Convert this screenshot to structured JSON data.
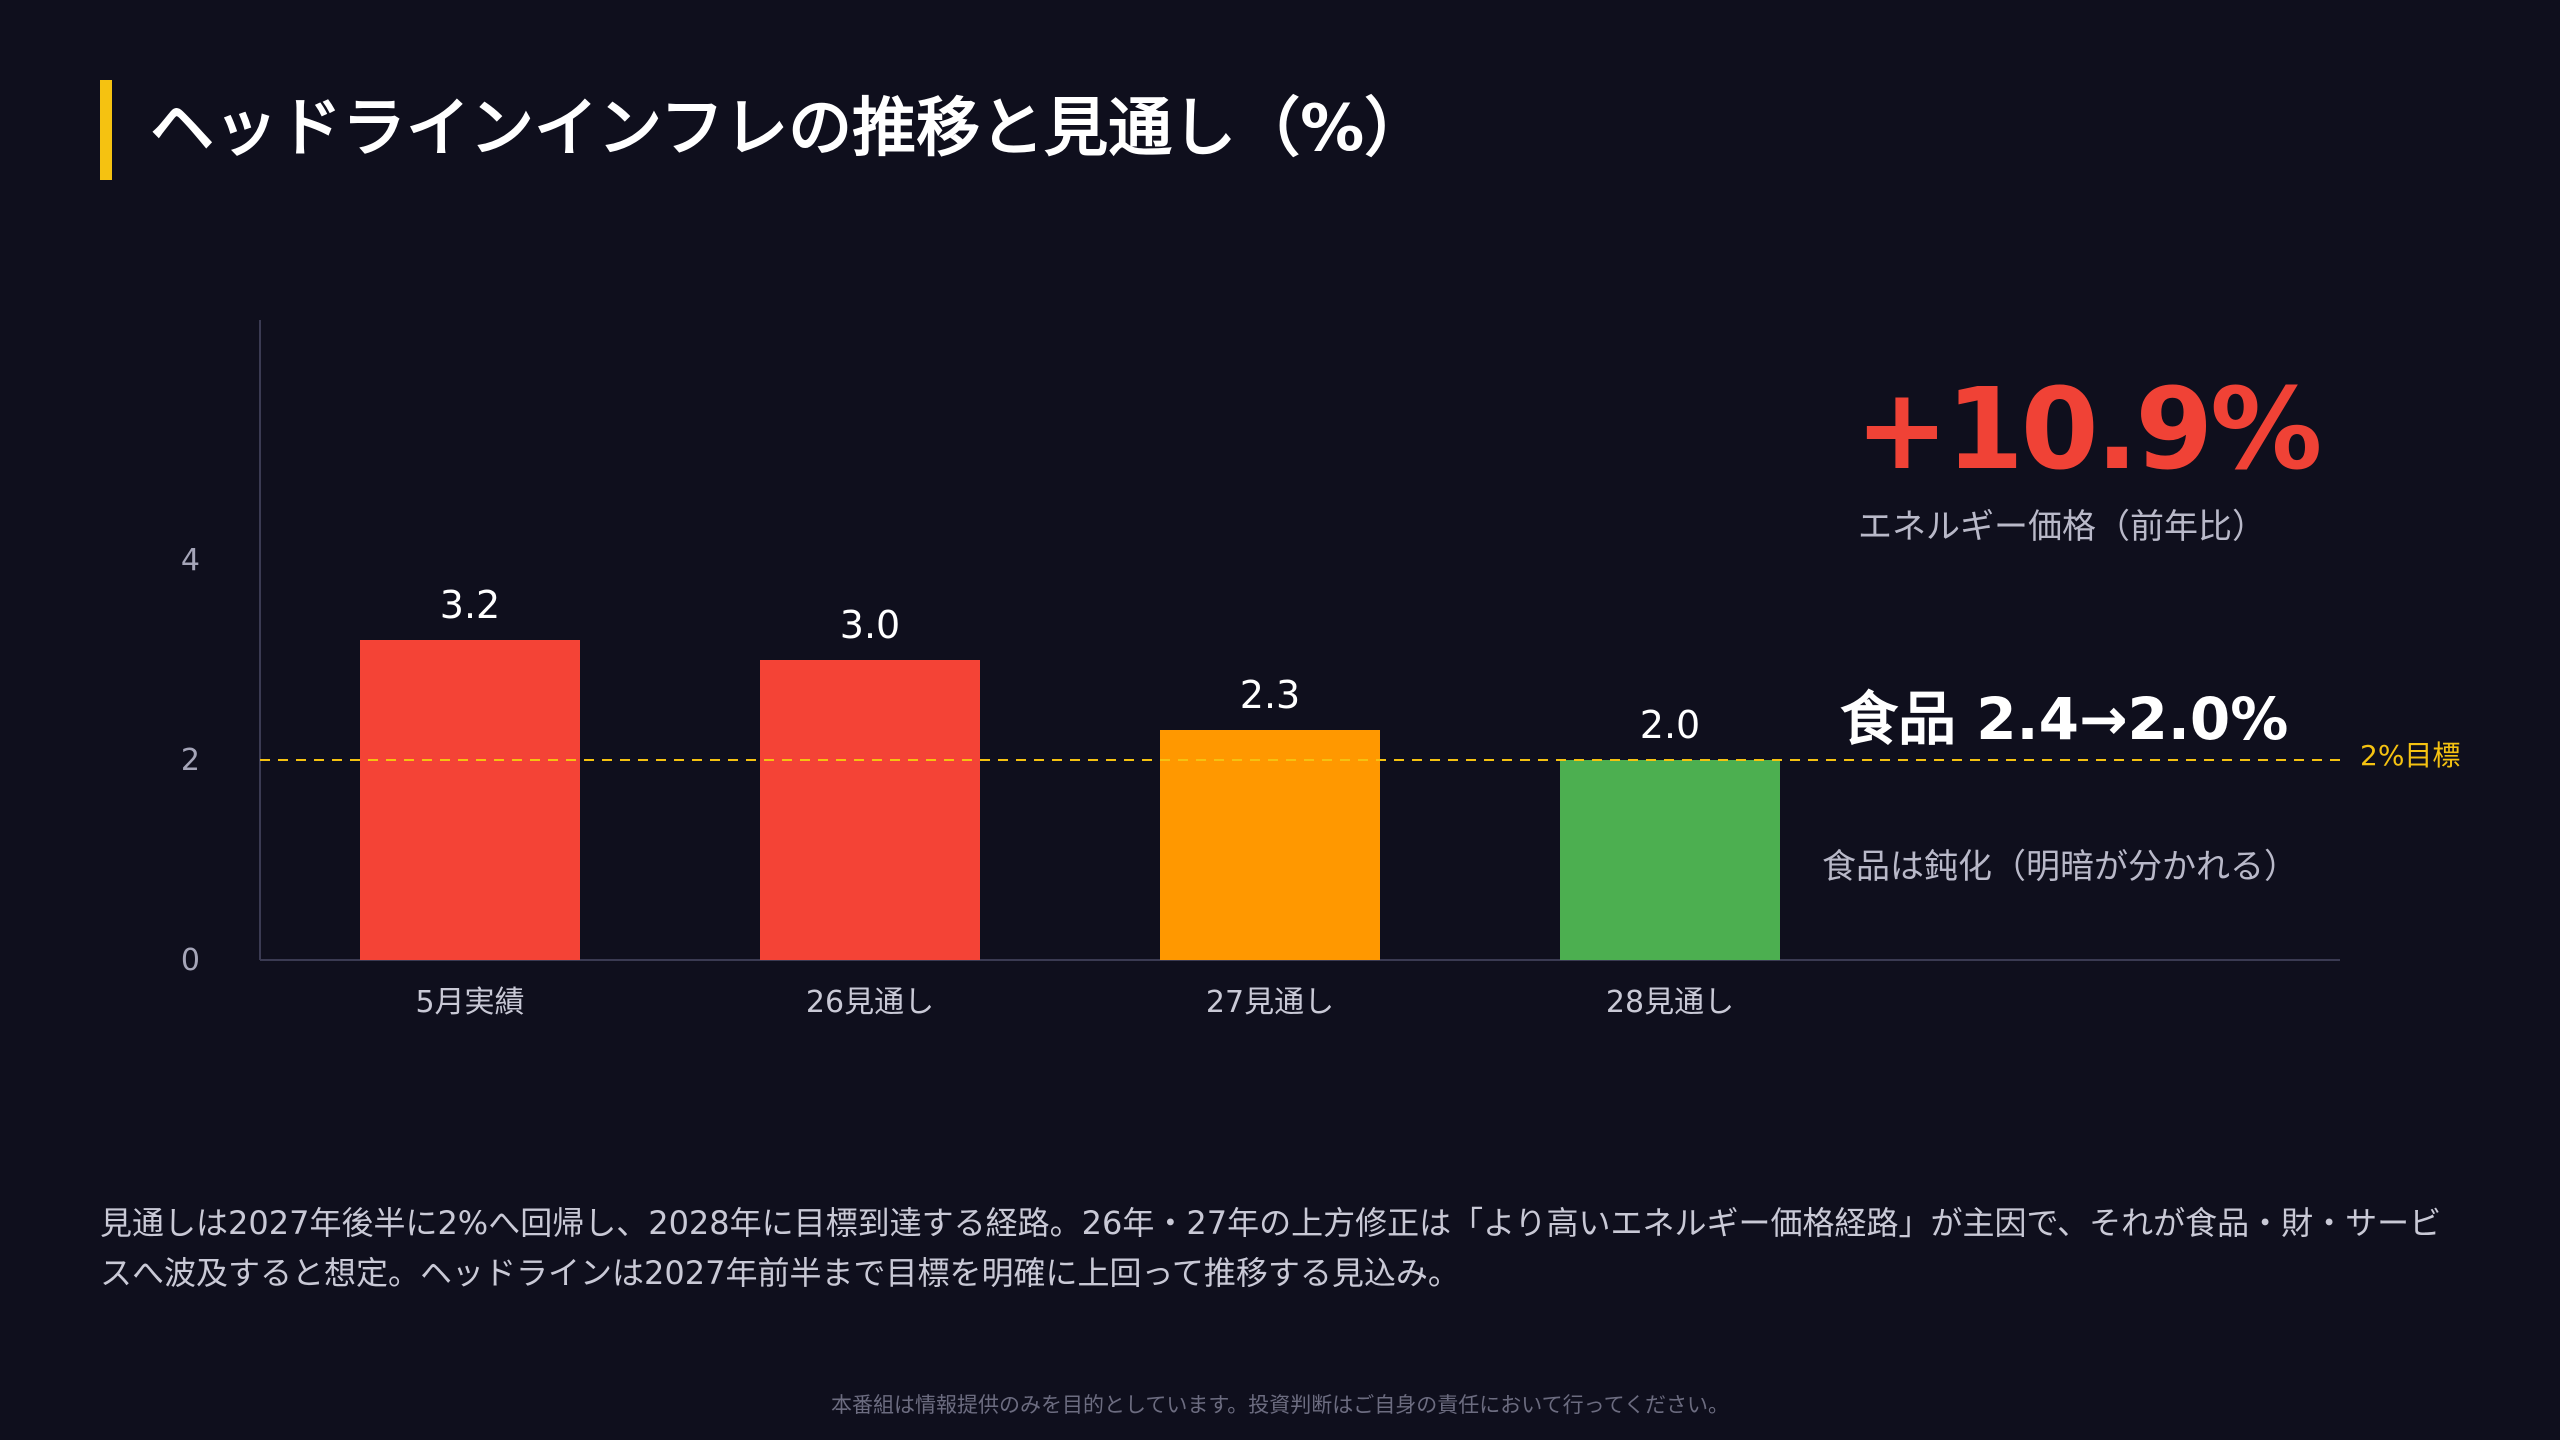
{
  "title": "ヘッドラインインフレの推移と見通し（%）",
  "chart_data": {
    "type": "bar",
    "categories": [
      "5月実績",
      "26見通し",
      "27見通し",
      "28見通し"
    ],
    "values": [
      3.2,
      3.0,
      2.3,
      2.0
    ],
    "data_labels": [
      "3.2",
      "3.0",
      "2.3",
      "2.0"
    ],
    "bar_colors": [
      "#f44336",
      "#f44336",
      "#ff9800",
      "#4caf50"
    ],
    "ylim": [
      0,
      6.4
    ],
    "yticks": [
      0,
      2,
      4
    ],
    "ytick_labels": [
      "0",
      "2",
      "4"
    ],
    "reference_line": {
      "value": 2,
      "label": "2%目標",
      "color": "#f5c211"
    },
    "grid": false
  },
  "callouts": {
    "energy_value": "+10.9%",
    "energy_label": "エネルギー価格（前年比）",
    "food_headline": "食品 2.4→2.0%",
    "food_sub": "食品は鈍化（明暗が分かれる）"
  },
  "description": "見通しは2027年後半に2%へ回帰し、2028年に目標到達する経路。26年・27年の上方修正は「より高いエネルギー価格経路」が主因で、それが食品・財・サービスへ波及すると想定。ヘッドラインは2027年前半まで目標を明確に上回って推移する見込み。",
  "disclaimer": "本番組は情報提供のみを目的としています。投資判断はご自身の責任において行ってください。",
  "colors": {
    "background": "#0f0f1d",
    "accent": "#f5c211",
    "kpi_red": "#f04236"
  }
}
